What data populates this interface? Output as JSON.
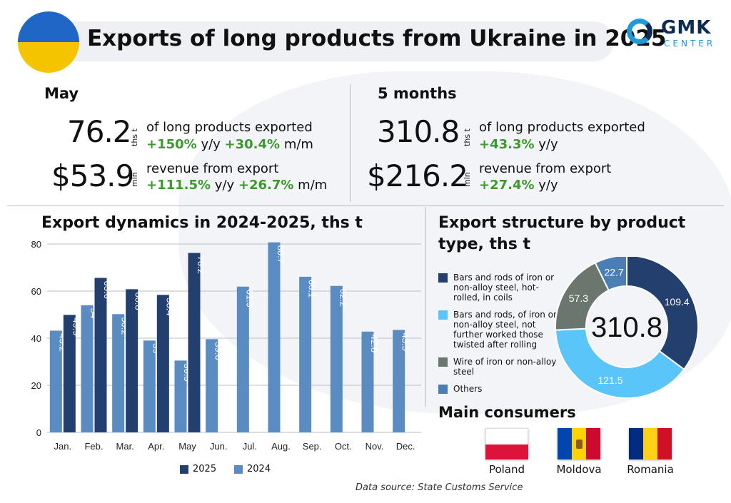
{
  "header": {
    "title": "Exports of long products from Ukraine in 2025",
    "logo_main": "GMK",
    "logo_sub": "CENTER"
  },
  "colors": {
    "y2025": "#233f6d",
    "y2024": "#5b8cc1",
    "green": "#3a9a2c",
    "donut": [
      "#233f6d",
      "#5ac5f8",
      "#6b766e",
      "#4a7fb5"
    ]
  },
  "may": {
    "label": "May",
    "volume": "76.2",
    "volume_unit": "ths t",
    "volume_desc": "of long products exported",
    "volume_yy": "+150%",
    "volume_yy_suffix": "y/y",
    "volume_mm": "+30.4%",
    "volume_mm_suffix": "m/m",
    "revenue": "$53.9",
    "revenue_unit": "mln",
    "revenue_desc": "revenue from export",
    "revenue_yy": "+111.5%",
    "revenue_yy_suffix": "y/y",
    "revenue_mm": "+26.7%",
    "revenue_mm_suffix": "m/m"
  },
  "five_months": {
    "label": "5 months",
    "volume": "310.8",
    "volume_unit": "ths t",
    "volume_desc": "of long products exported",
    "volume_yy": "+43.3%",
    "volume_yy_suffix": "y/y",
    "revenue": "$216.2",
    "revenue_unit": "mln",
    "revenue_desc": "revenue from export",
    "revenue_yy": "+27.4%",
    "revenue_yy_suffix": "y/y"
  },
  "chart_data": [
    {
      "type": "bar",
      "title": "Export dynamics in 2024-2025, ths t",
      "categories": [
        "Jan.",
        "Feb.",
        "Mar.",
        "Apr.",
        "May",
        "Jun.",
        "Jul.",
        "Aug.",
        "Sep.",
        "Oct.",
        "Nov.",
        "Dec."
      ],
      "series": [
        {
          "name": "2025",
          "values": [
            49.9,
            65.6,
            60.8,
            58.4,
            76.2,
            null,
            null,
            null,
            null,
            null,
            null,
            null
          ]
        },
        {
          "name": "2024",
          "values": [
            43.2,
            54,
            50.2,
            39,
            30.5,
            39.6,
            61.9,
            80.7,
            66.1,
            62.2,
            42.8,
            43.5
          ]
        }
      ],
      "ylim": [
        0,
        80
      ],
      "yticks": [
        0,
        20,
        40,
        60,
        80
      ],
      "grid": true,
      "legend": "bottom"
    },
    {
      "type": "pie",
      "title": "Export structure by product type, ths t",
      "center_label": "310.8",
      "labels": [
        "Bars and rods of iron or non-alloy steel, hot-rolled, in coils",
        "Bars and rods, of iron or non-alloy steel, not further worked those twisted after rolling",
        "Wire of iron or non-alloy steel",
        "Others"
      ],
      "values": [
        109.4,
        121.5,
        57.3,
        22.7
      ],
      "legend": "left"
    }
  ],
  "consumers": {
    "title": "Main consumers",
    "items": [
      {
        "name": "Poland",
        "flag": [
          "#ffffff",
          "#dc143c"
        ]
      },
      {
        "name": "Moldova",
        "flag": [
          "#0046ae",
          "#ffd200",
          "#cc092f"
        ]
      },
      {
        "name": "Romania",
        "flag": [
          "#002b7f",
          "#fcd116",
          "#ce1126"
        ]
      }
    ]
  },
  "source": "Data source: State Customs Service"
}
